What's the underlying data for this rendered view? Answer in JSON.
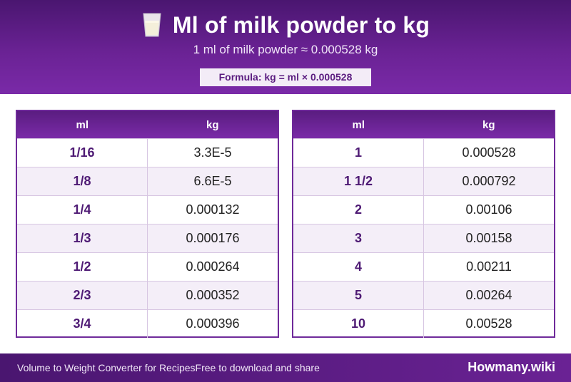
{
  "header": {
    "title": "Ml of milk powder to kg",
    "icon": "milk-glass-icon",
    "subtitle": "1 ml of milk powder ≈ 0.000528 kg",
    "formula": "Formula: kg = ml × 0.000528"
  },
  "tables": {
    "left": {
      "col_ml": "ml",
      "col_kg": "kg",
      "rows": [
        {
          "ml": "1/16",
          "kg": "3.3E-5"
        },
        {
          "ml": "1/8",
          "kg": "6.6E-5"
        },
        {
          "ml": "1/4",
          "kg": "0.000132"
        },
        {
          "ml": "1/3",
          "kg": "0.000176"
        },
        {
          "ml": "1/2",
          "kg": "0.000264"
        },
        {
          "ml": "2/3",
          "kg": "0.000352"
        },
        {
          "ml": "3/4",
          "kg": "0.000396"
        }
      ]
    },
    "right": {
      "col_ml": "ml",
      "col_kg": "kg",
      "rows": [
        {
          "ml": "1",
          "kg": "0.000528"
        },
        {
          "ml": "1 1/2",
          "kg": "0.000792"
        },
        {
          "ml": "2",
          "kg": "0.00106"
        },
        {
          "ml": "3",
          "kg": "0.00158"
        },
        {
          "ml": "4",
          "kg": "0.00211"
        },
        {
          "ml": "5",
          "kg": "0.00264"
        },
        {
          "ml": "10",
          "kg": "0.00528"
        }
      ]
    }
  },
  "footer": {
    "left_text_1": "Volume to Weight Converter for Recipes",
    "left_text_2": "Free to download and share",
    "brand": "Howmany.wiki"
  },
  "colors": {
    "accent": "#6a2294",
    "accent_dark": "#4a1670",
    "row_alt": "#f4eef8"
  }
}
